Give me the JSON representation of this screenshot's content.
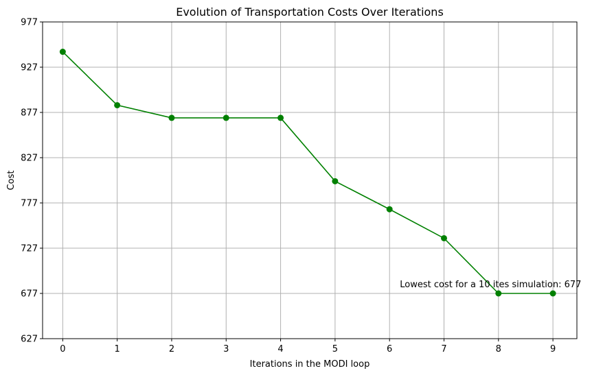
{
  "chart_data": {
    "type": "line",
    "title": "Evolution of Transportation Costs Over Iterations",
    "xlabel": "Iterations in the MODI loop",
    "ylabel": "Cost",
    "x": [
      0,
      1,
      2,
      3,
      4,
      5,
      6,
      7,
      8,
      9
    ],
    "series": [
      {
        "values": [
          944,
          885,
          871,
          871,
          871,
          801,
          770,
          738,
          677,
          677
        ],
        "color": "#008000",
        "marker": "circle"
      }
    ],
    "xticks": [
      0,
      1,
      2,
      3,
      4,
      5,
      6,
      7,
      8,
      9
    ],
    "yticks": [
      627,
      677,
      727,
      777,
      827,
      877,
      927,
      977
    ],
    "xlim": [
      -0.37,
      9.44
    ],
    "ylim": [
      627,
      977
    ],
    "grid": true,
    "annotation": {
      "text": "Lowest cost for a 10 ites simulation: 677",
      "x": 6.19,
      "y": 684
    }
  }
}
